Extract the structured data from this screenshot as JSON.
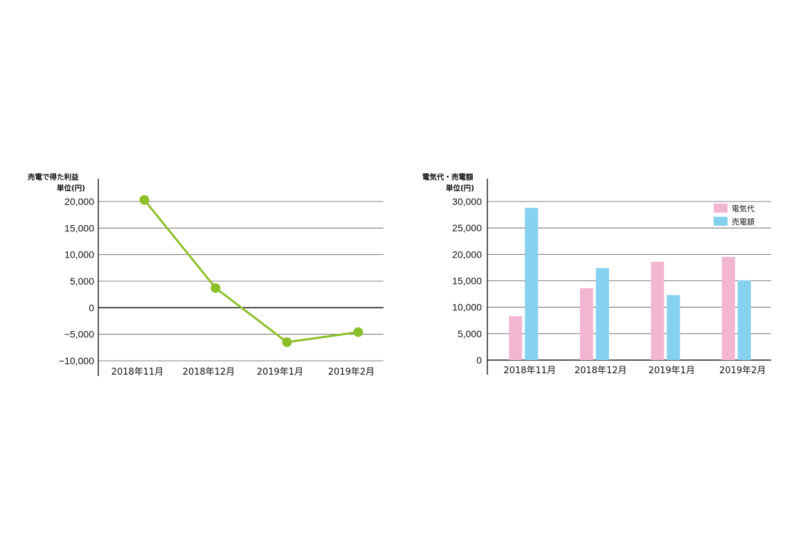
{
  "chart_data": [
    {
      "type": "line",
      "title": "売電で得た利益",
      "unit_label": "単位(円)",
      "categories": [
        "2018年11月",
        "2018年12月",
        "2019年1月",
        "2019年2月"
      ],
      "series": [
        {
          "values": [
            20300,
            3700,
            -6500,
            -4600
          ],
          "color": "#8bbf2a"
        }
      ],
      "ylim": [
        -10000,
        20000
      ],
      "yticks": [
        20000,
        15000,
        10000,
        5000,
        0,
        -5000,
        -10000
      ],
      "ytick_labels": [
        "20,000",
        "15,000",
        "10,000",
        "5,000",
        "0",
        "−5,000",
        "−10,000"
      ],
      "grid": true
    },
    {
      "type": "bar",
      "title": "電気代・売電額",
      "unit_label": "単位(円)",
      "categories": [
        "2018年11月",
        "2018年12月",
        "2019年1月",
        "2019年2月"
      ],
      "series": [
        {
          "name": "電気代",
          "values": [
            8300,
            13600,
            18600,
            19500
          ],
          "color": "#f3b6d0"
        },
        {
          "name": "売電額",
          "values": [
            28800,
            17400,
            12300,
            15100
          ],
          "color": "#86d0f0"
        }
      ],
      "ylim": [
        0,
        30000
      ],
      "yticks": [
        30000,
        25000,
        20000,
        15000,
        10000,
        5000,
        0
      ],
      "ytick_labels": [
        "30,000",
        "25,000",
        "20,000",
        "15,000",
        "10,000",
        "5,000",
        "0"
      ],
      "grid": true,
      "legend": "top-right"
    }
  ]
}
